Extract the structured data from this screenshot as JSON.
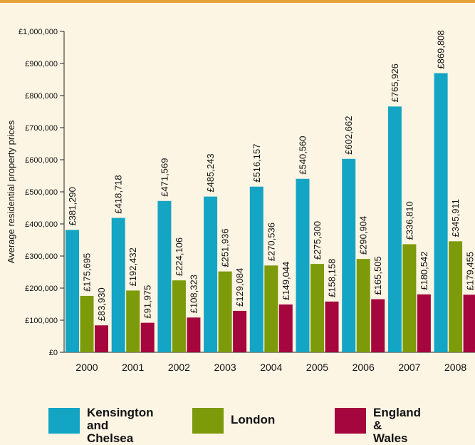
{
  "chart_data": {
    "type": "bar",
    "title": "",
    "xlabel": "",
    "ylabel": "Average residential property prices",
    "ylim": [
      0,
      1000000
    ],
    "yticks": [
      {
        "value": 0,
        "label": "£0"
      },
      {
        "value": 100000,
        "label": "£100,000"
      },
      {
        "value": 200000,
        "label": "£200,000"
      },
      {
        "value": 300000,
        "label": "£300,000"
      },
      {
        "value": 400000,
        "label": "£400,000"
      },
      {
        "value": 500000,
        "label": "£500,000"
      },
      {
        "value": 600000,
        "label": "£600,000"
      },
      {
        "value": 700000,
        "label": "£700,000"
      },
      {
        "value": 800000,
        "label": "£800,000"
      },
      {
        "value": 900000,
        "label": "£900,000"
      },
      {
        "value": 1000000,
        "label": "£1,000,000"
      }
    ],
    "categories": [
      "2000",
      "2001",
      "2002",
      "2003",
      "2004",
      "2005",
      "2006",
      "2007",
      "2008"
    ],
    "series": [
      {
        "name": "Kensington and Chelsea",
        "color": "#14a5c4",
        "values": [
          381290,
          418718,
          471569,
          485243,
          516157,
          540560,
          602662,
          765926,
          869808
        ],
        "labels": [
          "£381,290",
          "£418,718",
          "£471,569",
          "£485,243",
          "£516,157",
          "£540,560",
          "£602,662",
          "£765,926",
          "£869,808"
        ]
      },
      {
        "name": "London",
        "color": "#7d9a0a",
        "values": [
          175695,
          192432,
          224106,
          251936,
          270536,
          275300,
          290904,
          336810,
          345911
        ],
        "labels": [
          "£175,695",
          "£192,432",
          "£224,106",
          "£251,936",
          "£270,536",
          "£275,300",
          "£290,904",
          "£336,810",
          "£345,911"
        ]
      },
      {
        "name": "England & Wales",
        "color": "#a4063d",
        "values": [
          83930,
          91975,
          108323,
          129084,
          149044,
          158158,
          165505,
          180542,
          179455
        ],
        "labels": [
          "£83,930",
          "£91,975",
          "£108,323",
          "£129,084",
          "£149,044",
          "£158,158",
          "£165,505",
          "£180,542",
          "£179,455"
        ]
      }
    ],
    "legend_position": "bottom",
    "grid": false
  },
  "legend": {
    "items": [
      {
        "line1": "Kensington",
        "line2": "and Chelsea",
        "color": "#14a5c4"
      },
      {
        "line1": "London",
        "line2": "",
        "color": "#7d9a0a"
      },
      {
        "line1": "England &",
        "line2": "Wales",
        "color": "#a4063d"
      }
    ]
  }
}
